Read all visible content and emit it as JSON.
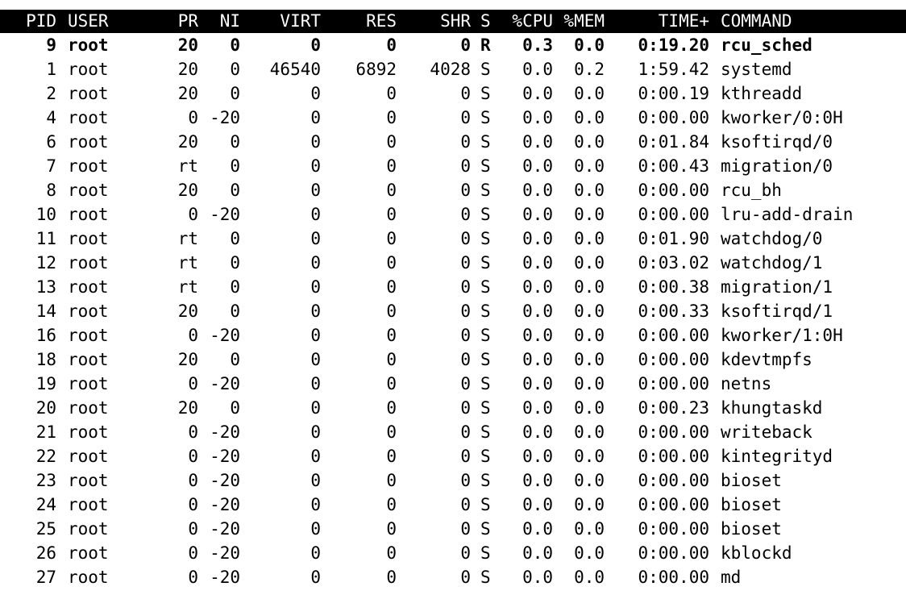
{
  "header": {
    "pid": "PID",
    "user": "USER",
    "pr": "PR",
    "ni": "NI",
    "virt": "VIRT",
    "res": "RES",
    "shr": "SHR",
    "s": "S",
    "cpu": "%CPU",
    "mem": "%MEM",
    "time": "TIME+",
    "command": "COMMAND"
  },
  "processes": [
    {
      "pid": "9",
      "user": "root",
      "pr": "20",
      "ni": "0",
      "virt": "0",
      "res": "0",
      "shr": "0",
      "s": "R",
      "cpu": "0.3",
      "mem": "0.0",
      "time": "0:19.20",
      "command": "rcu_sched"
    },
    {
      "pid": "1",
      "user": "root",
      "pr": "20",
      "ni": "0",
      "virt": "46540",
      "res": "6892",
      "shr": "4028",
      "s": "S",
      "cpu": "0.0",
      "mem": "0.2",
      "time": "1:59.42",
      "command": "systemd"
    },
    {
      "pid": "2",
      "user": "root",
      "pr": "20",
      "ni": "0",
      "virt": "0",
      "res": "0",
      "shr": "0",
      "s": "S",
      "cpu": "0.0",
      "mem": "0.0",
      "time": "0:00.19",
      "command": "kthreadd"
    },
    {
      "pid": "4",
      "user": "root",
      "pr": "0",
      "ni": "-20",
      "virt": "0",
      "res": "0",
      "shr": "0",
      "s": "S",
      "cpu": "0.0",
      "mem": "0.0",
      "time": "0:00.00",
      "command": "kworker/0:0H"
    },
    {
      "pid": "6",
      "user": "root",
      "pr": "20",
      "ni": "0",
      "virt": "0",
      "res": "0",
      "shr": "0",
      "s": "S",
      "cpu": "0.0",
      "mem": "0.0",
      "time": "0:01.84",
      "command": "ksoftirqd/0"
    },
    {
      "pid": "7",
      "user": "root",
      "pr": "rt",
      "ni": "0",
      "virt": "0",
      "res": "0",
      "shr": "0",
      "s": "S",
      "cpu": "0.0",
      "mem": "0.0",
      "time": "0:00.43",
      "command": "migration/0"
    },
    {
      "pid": "8",
      "user": "root",
      "pr": "20",
      "ni": "0",
      "virt": "0",
      "res": "0",
      "shr": "0",
      "s": "S",
      "cpu": "0.0",
      "mem": "0.0",
      "time": "0:00.00",
      "command": "rcu_bh"
    },
    {
      "pid": "10",
      "user": "root",
      "pr": "0",
      "ni": "-20",
      "virt": "0",
      "res": "0",
      "shr": "0",
      "s": "S",
      "cpu": "0.0",
      "mem": "0.0",
      "time": "0:00.00",
      "command": "lru-add-drain"
    },
    {
      "pid": "11",
      "user": "root",
      "pr": "rt",
      "ni": "0",
      "virt": "0",
      "res": "0",
      "shr": "0",
      "s": "S",
      "cpu": "0.0",
      "mem": "0.0",
      "time": "0:01.90",
      "command": "watchdog/0"
    },
    {
      "pid": "12",
      "user": "root",
      "pr": "rt",
      "ni": "0",
      "virt": "0",
      "res": "0",
      "shr": "0",
      "s": "S",
      "cpu": "0.0",
      "mem": "0.0",
      "time": "0:03.02",
      "command": "watchdog/1"
    },
    {
      "pid": "13",
      "user": "root",
      "pr": "rt",
      "ni": "0",
      "virt": "0",
      "res": "0",
      "shr": "0",
      "s": "S",
      "cpu": "0.0",
      "mem": "0.0",
      "time": "0:00.38",
      "command": "migration/1"
    },
    {
      "pid": "14",
      "user": "root",
      "pr": "20",
      "ni": "0",
      "virt": "0",
      "res": "0",
      "shr": "0",
      "s": "S",
      "cpu": "0.0",
      "mem": "0.0",
      "time": "0:00.33",
      "command": "ksoftirqd/1"
    },
    {
      "pid": "16",
      "user": "root",
      "pr": "0",
      "ni": "-20",
      "virt": "0",
      "res": "0",
      "shr": "0",
      "s": "S",
      "cpu": "0.0",
      "mem": "0.0",
      "time": "0:00.00",
      "command": "kworker/1:0H"
    },
    {
      "pid": "18",
      "user": "root",
      "pr": "20",
      "ni": "0",
      "virt": "0",
      "res": "0",
      "shr": "0",
      "s": "S",
      "cpu": "0.0",
      "mem": "0.0",
      "time": "0:00.00",
      "command": "kdevtmpfs"
    },
    {
      "pid": "19",
      "user": "root",
      "pr": "0",
      "ni": "-20",
      "virt": "0",
      "res": "0",
      "shr": "0",
      "s": "S",
      "cpu": "0.0",
      "mem": "0.0",
      "time": "0:00.00",
      "command": "netns"
    },
    {
      "pid": "20",
      "user": "root",
      "pr": "20",
      "ni": "0",
      "virt": "0",
      "res": "0",
      "shr": "0",
      "s": "S",
      "cpu": "0.0",
      "mem": "0.0",
      "time": "0:00.23",
      "command": "khungtaskd"
    },
    {
      "pid": "21",
      "user": "root",
      "pr": "0",
      "ni": "-20",
      "virt": "0",
      "res": "0",
      "shr": "0",
      "s": "S",
      "cpu": "0.0",
      "mem": "0.0",
      "time": "0:00.00",
      "command": "writeback"
    },
    {
      "pid": "22",
      "user": "root",
      "pr": "0",
      "ni": "-20",
      "virt": "0",
      "res": "0",
      "shr": "0",
      "s": "S",
      "cpu": "0.0",
      "mem": "0.0",
      "time": "0:00.00",
      "command": "kintegrityd"
    },
    {
      "pid": "23",
      "user": "root",
      "pr": "0",
      "ni": "-20",
      "virt": "0",
      "res": "0",
      "shr": "0",
      "s": "S",
      "cpu": "0.0",
      "mem": "0.0",
      "time": "0:00.00",
      "command": "bioset"
    },
    {
      "pid": "24",
      "user": "root",
      "pr": "0",
      "ni": "-20",
      "virt": "0",
      "res": "0",
      "shr": "0",
      "s": "S",
      "cpu": "0.0",
      "mem": "0.0",
      "time": "0:00.00",
      "command": "bioset"
    },
    {
      "pid": "25",
      "user": "root",
      "pr": "0",
      "ni": "-20",
      "virt": "0",
      "res": "0",
      "shr": "0",
      "s": "S",
      "cpu": "0.0",
      "mem": "0.0",
      "time": "0:00.00",
      "command": "bioset"
    },
    {
      "pid": "26",
      "user": "root",
      "pr": "0",
      "ni": "-20",
      "virt": "0",
      "res": "0",
      "shr": "0",
      "s": "S",
      "cpu": "0.0",
      "mem": "0.0",
      "time": "0:00.00",
      "command": "kblockd"
    },
    {
      "pid": "27",
      "user": "root",
      "pr": "0",
      "ni": "-20",
      "virt": "0",
      "res": "0",
      "shr": "0",
      "s": "S",
      "cpu": "0.0",
      "mem": "0.0",
      "time": "0:00.00",
      "command": "md"
    }
  ],
  "highlighted_index": 0
}
